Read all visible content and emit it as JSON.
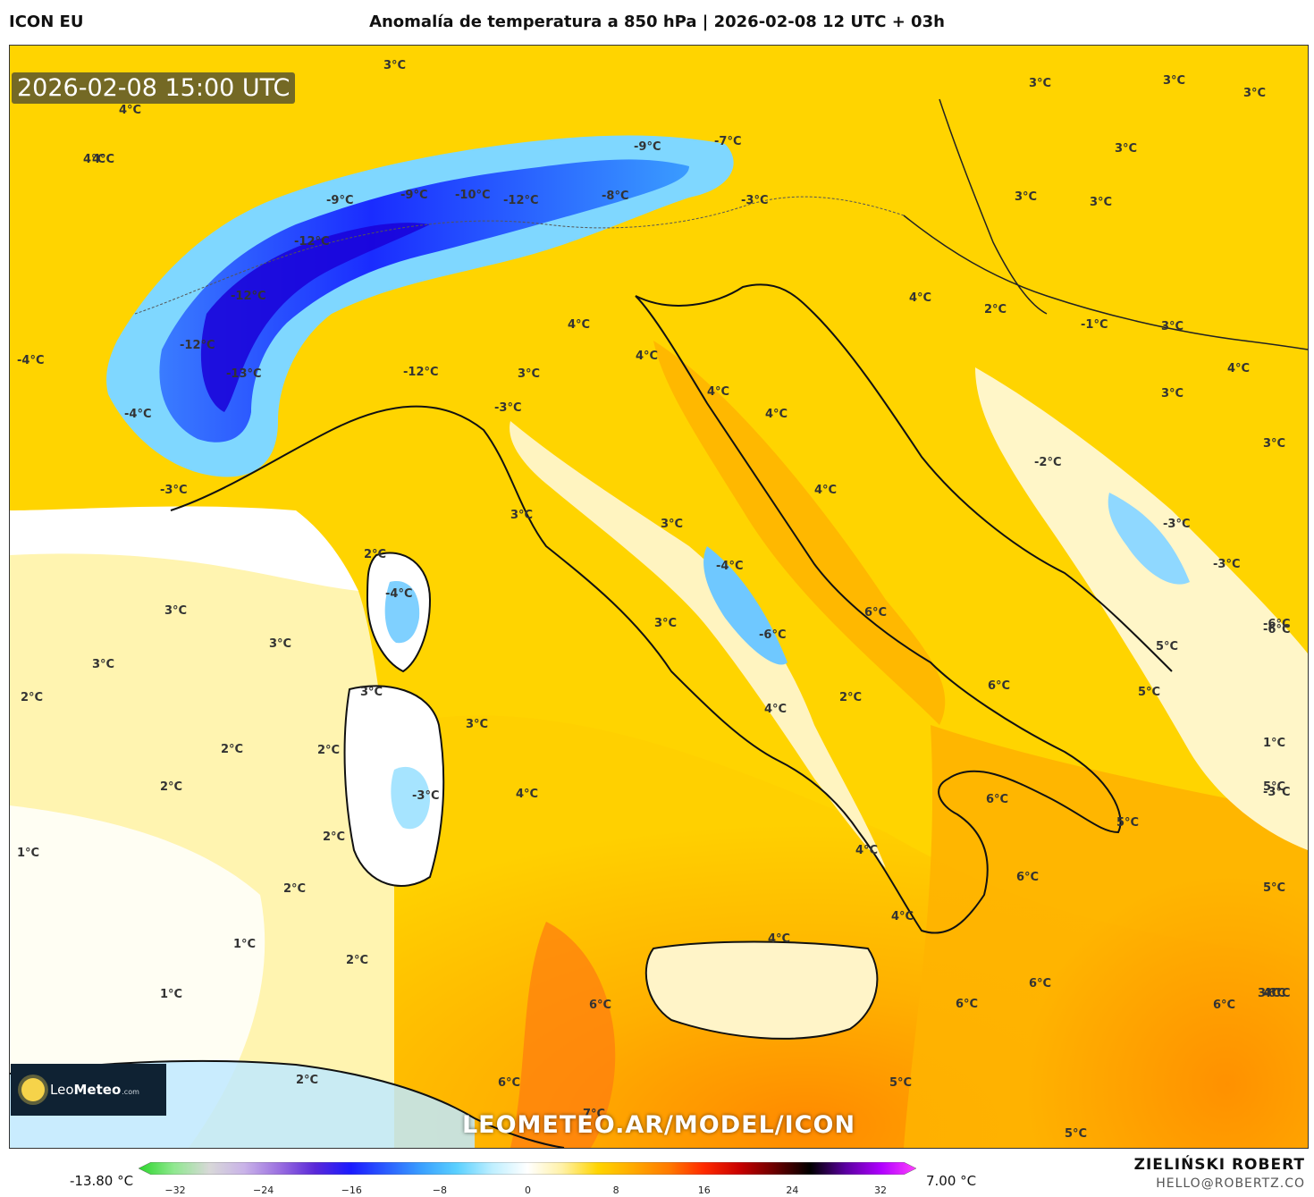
{
  "header": {
    "model": "ICON EU",
    "title": "Anomalía de temperatura a 850 hPa | 2026-02-08 12 UTC + 03h"
  },
  "map": {
    "timestamp": "2026-02-08 15:00 UTC",
    "watermark": "LEOMETEO.AR/MODEL/ICON",
    "logo": {
      "brand": "Leo",
      "brand_bold": "Meteo",
      "suffix": ".com"
    },
    "labels": [
      "3°C",
      "4°C",
      "4°C",
      "-4°C",
      "-4°C",
      "-3°C",
      "-12°C",
      "-12°C",
      "-12°C",
      "-13°C",
      "-9°C",
      "-9°C",
      "-10°C",
      "-12°C",
      "-9°C",
      "-8°C",
      "-7°C",
      "-3°C",
      "3°C",
      "3°C",
      "3°C",
      "3°C",
      "3°C",
      "3°C",
      "4°C",
      "4°C",
      "4°C",
      "4°C",
      "4°C",
      "4°C",
      "4°C",
      "-12°C",
      "-3°C",
      "-4°C",
      "-2°C",
      "-3°C",
      "-3°C",
      "-6°C",
      "-4°C",
      "-6°C",
      "-3°C",
      "3°C",
      "3°C",
      "3°C",
      "2°C",
      "2°C",
      "2°C",
      "2°C",
      "2°C",
      "2°C",
      "2°C",
      "2°C",
      "2°C",
      "2°C",
      "2°C",
      "1°C",
      "1°C",
      "1°C",
      "1°C",
      "3°C",
      "3°C",
      "3°C",
      "3°C",
      "3°C",
      "3°C",
      "4°C",
      "4°C",
      "4°C",
      "4°C",
      "4°C",
      "5°C",
      "5°C",
      "5°C",
      "5°C",
      "5°C",
      "5°C",
      "5°C",
      "6°C",
      "6°C",
      "6°C",
      "6°C",
      "6°C",
      "6°C",
      "6°C",
      "6°C",
      "6°C",
      "7°C",
      "-1°C",
      "-3°C",
      "3°C",
      "4°C",
      "3°C",
      "-6°C",
      "-6°C",
      "3°C",
      "4°C",
      "3°C"
    ]
  },
  "colorbar": {
    "min_label": "-13.80 °C",
    "max_label": "7.00 °C",
    "ticks": [
      "−32",
      "−24",
      "−16",
      "−8",
      "0",
      "8",
      "16",
      "24",
      "32"
    ],
    "stops": [
      "#2bd62b",
      "#8fe88f",
      "#d8d8d8",
      "#c9b3e8",
      "#9a6ee0",
      "#5a28d8",
      "#1a1aff",
      "#2a5cff",
      "#3aa0ff",
      "#5ad0ff",
      "#bfefff",
      "#ffffff",
      "#fff1a6",
      "#ffd400",
      "#ffaa00",
      "#ff7a00",
      "#ff2a00",
      "#c80000",
      "#6a0000",
      "#000000",
      "#5a00a0",
      "#b000ff",
      "#ff40ff"
    ]
  },
  "footer": {
    "author": "ZIELIŃSKI ROBERT",
    "email": "HELLO@ROBERTZ.CO"
  }
}
